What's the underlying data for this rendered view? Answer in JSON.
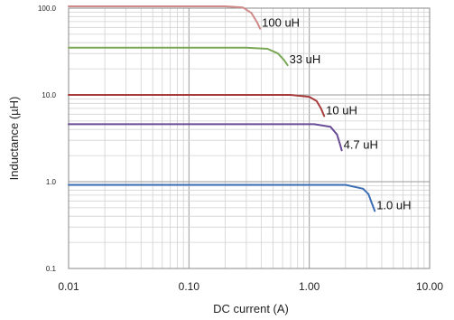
{
  "chart_data": {
    "type": "line",
    "title": "",
    "xlabel": "DC current (A)",
    "ylabel": "Inductance (µH)",
    "x_scale": "log",
    "y_scale": "log",
    "xlim": [
      0.01,
      10
    ],
    "ylim": [
      0.1,
      100
    ],
    "x_ticks": [
      0.01,
      0.1,
      1,
      10
    ],
    "x_tick_labels": [
      "0.01",
      "0.10",
      "1.00",
      "10.00"
    ],
    "y_ticks": [
      0.1,
      1,
      10,
      100
    ],
    "y_tick_labels": [
      "0.1",
      "1.0",
      "10.0",
      "100.0"
    ],
    "grid": true,
    "legend": "none",
    "series": [
      {
        "name": "100 uH",
        "color": "#d08a8a",
        "points": [
          [
            0.01,
            105
          ],
          [
            0.2,
            105
          ],
          [
            0.28,
            102
          ],
          [
            0.33,
            88
          ],
          [
            0.37,
            68
          ],
          [
            0.39,
            58
          ]
        ]
      },
      {
        "name": "33 uH",
        "color": "#7aa854",
        "points": [
          [
            0.01,
            35
          ],
          [
            0.3,
            35
          ],
          [
            0.45,
            34
          ],
          [
            0.55,
            30
          ],
          [
            0.62,
            25
          ],
          [
            0.66,
            22
          ]
        ]
      },
      {
        "name": "10 uH",
        "color": "#a83c3c",
        "points": [
          [
            0.01,
            10
          ],
          [
            0.7,
            10
          ],
          [
            1.0,
            9.5
          ],
          [
            1.15,
            8.5
          ],
          [
            1.25,
            7
          ],
          [
            1.33,
            5.7
          ]
        ]
      },
      {
        "name": "4.7 uH",
        "color": "#6a4c96",
        "points": [
          [
            0.01,
            4.6
          ],
          [
            1.1,
            4.6
          ],
          [
            1.5,
            4.3
          ],
          [
            1.7,
            3.5
          ],
          [
            1.8,
            2.7
          ],
          [
            1.86,
            2.3
          ]
        ]
      },
      {
        "name": "1.0 uH",
        "color": "#3c6eb4",
        "points": [
          [
            0.01,
            0.92
          ],
          [
            2.0,
            0.92
          ],
          [
            2.8,
            0.83
          ],
          [
            3.1,
            0.72
          ],
          [
            3.3,
            0.57
          ],
          [
            3.5,
            0.46
          ]
        ]
      }
    ]
  }
}
